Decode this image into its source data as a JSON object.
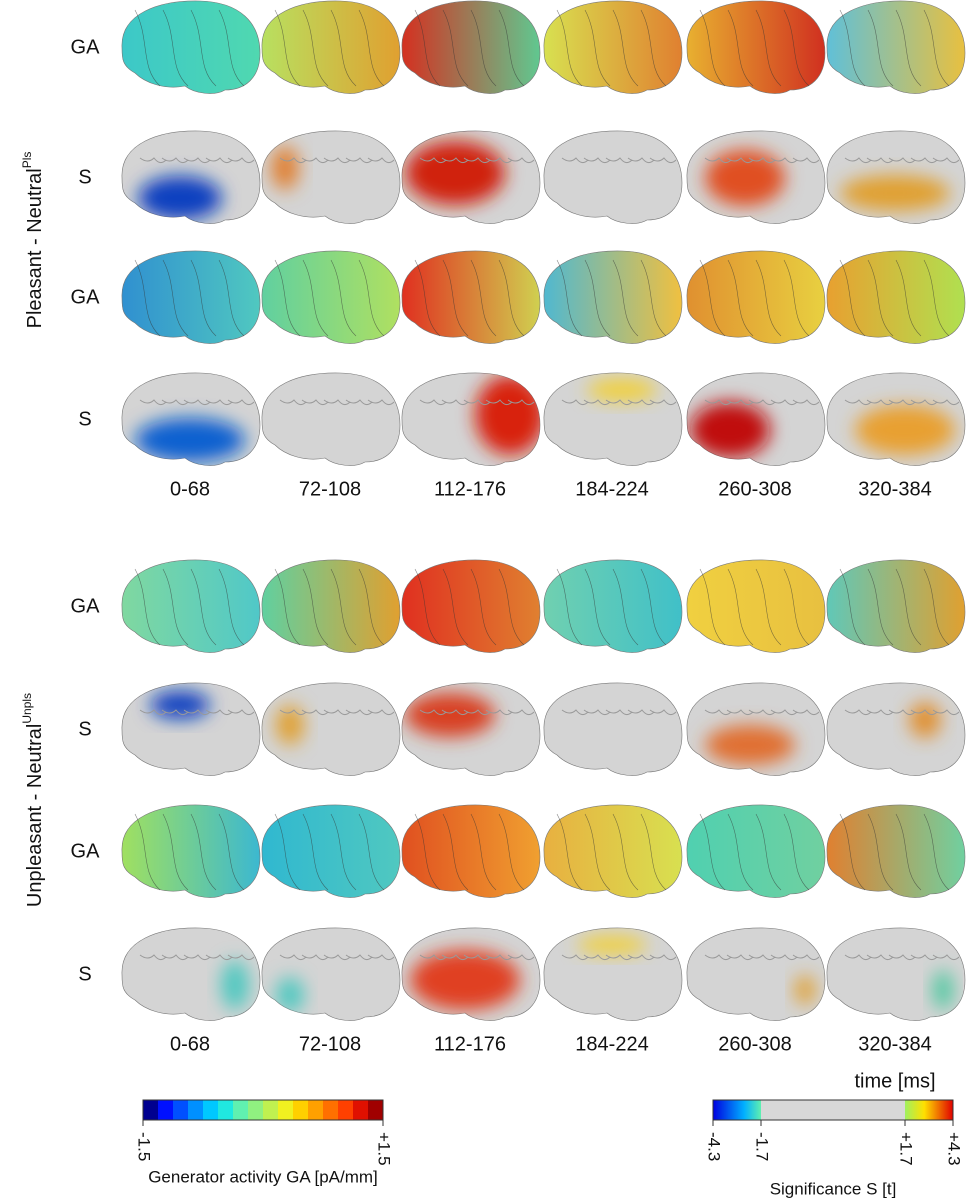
{
  "panels": [
    {
      "label": "Pleasant - Neutral",
      "superscript": "Pls",
      "rows": [
        "GA",
        "S",
        "GA",
        "S"
      ],
      "time_windows": [
        "0-68",
        "72-108",
        "112-176",
        "184-224",
        "260-308",
        "320-384"
      ]
    },
    {
      "label": "Unpleasant - Neutral",
      "superscript": "Unpls",
      "rows": [
        "GA",
        "S",
        "GA",
        "S"
      ],
      "time_windows": [
        "0-68",
        "72-108",
        "112-176",
        "184-224",
        "260-308",
        "320-384"
      ]
    }
  ],
  "time_axis_label": "time [ms]",
  "colorbars": [
    {
      "title": "Generator activity GA [pA/mm]",
      "ticks": [
        "-1.5",
        "+1.5"
      ]
    },
    {
      "title": "Significance S [t]",
      "ticks": [
        "-4.3",
        "-1.7",
        "+1.7",
        "+4.3"
      ]
    }
  ]
}
